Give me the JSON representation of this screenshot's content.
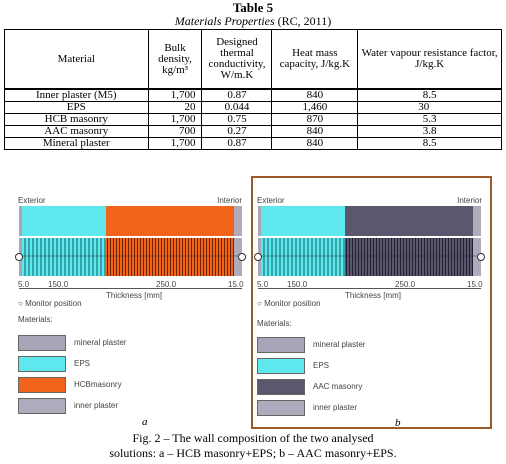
{
  "table": {
    "title": "Table 5",
    "subtitle_italic": "Materials Properties",
    "subtitle_rest": " (RC, 2011)",
    "headers": [
      "Material",
      "Bulk density, kg/m³",
      "Designed thermal conductivity, W/m.K",
      "Heat mass capacity, J/kg.K",
      "Water vapour resistance factor, J/kg.K"
    ],
    "rows": [
      [
        "Inner plaster (M5)",
        "1,700",
        "0.87",
        "840",
        "8.5"
      ],
      [
        "EPS",
        "20",
        "0.044",
        "1,460",
        "30"
      ],
      [
        "HCB masonry",
        "1,700",
        "0.75",
        "870",
        "5.3"
      ],
      [
        "AAC masonry",
        "700",
        "0.27",
        "840",
        "3.8"
      ],
      [
        "Mineral plaster",
        "1,700",
        "0.87",
        "840",
        "8.5"
      ]
    ]
  },
  "figure": {
    "panel_a": {
      "exterior": "Exterior",
      "interior": "Interior",
      "dims": [
        "5.0",
        "150.0",
        "250.0",
        "15.0"
      ],
      "thickness_label": "Thickness [mm]",
      "monitor": "Monitor position",
      "materials_label": "Materials:",
      "legend": [
        "mineral plaster",
        "EPS",
        "HCBmasonry",
        "inner plaster"
      ],
      "letter": "a"
    },
    "panel_b": {
      "exterior": "Exterior",
      "interior": "Interior",
      "dims": [
        "5.0",
        "150.0",
        "250.0",
        "15.0"
      ],
      "thickness_label": "Thickness [mm]",
      "monitor": "Monitor position",
      "materials_label": "Materials:",
      "legend": [
        "mineral plaster",
        "EPS",
        "AAC masonry",
        "inner plaster"
      ],
      "letter": "b"
    },
    "caption_line1": "Fig. 2 – The wall composition of the two analysed",
    "caption_line2": "solutions: a – HCB masonry+EPS; b – AAC masonry+EPS.",
    "colors": {
      "mineral_plaster": "#a9a5b8",
      "eps": "#5ee8ee",
      "hcb": "#f2641a",
      "aac": "#5c566e",
      "inner_plaster": "#b0aabd",
      "frame": "#9a5a2a"
    }
  }
}
